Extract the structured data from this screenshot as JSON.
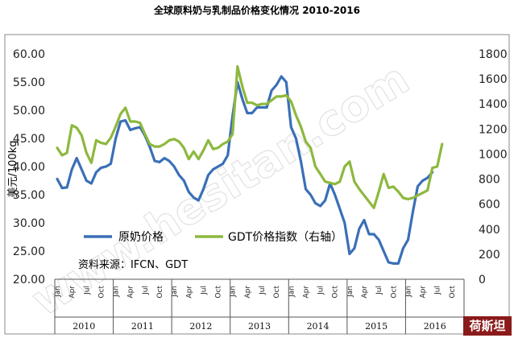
{
  "chart_data": {
    "type": "line",
    "title": "全球原料奶与乳制品价格变化情况  2010-2016",
    "ylabel": "美元/100kg",
    "y_left": {
      "lim": [
        20,
        60
      ],
      "ticks": [
        "20.00",
        "25.00",
        "30.00",
        "35.00",
        "40.00",
        "45.00",
        "50.00",
        "55.00",
        "60.00"
      ]
    },
    "y_right": {
      "lim": [
        0,
        1800
      ],
      "ticks": [
        "0",
        "200",
        "400",
        "600",
        "800",
        "1000",
        "1200",
        "1400",
        "1600",
        "1800"
      ]
    },
    "month_labels": [
      "Jan",
      "Apr",
      "Jul",
      "Oct"
    ],
    "years": [
      "2010",
      "2011",
      "2012",
      "2013",
      "2014",
      "2015",
      "2016"
    ],
    "x_start": "2010-01",
    "x_end": "2016-12",
    "annotation": "资料来源：IFCN、GDT",
    "legend_position": "inside-bottom-left",
    "series": [
      {
        "name": "原奶价格",
        "axis": "left",
        "color": "#3a6fb7",
        "values": [
          37.8,
          36.2,
          36.3,
          39.5,
          41.5,
          39.5,
          37.5,
          37.0,
          39.0,
          39.8,
          40.0,
          40.5,
          45.0,
          48.0,
          48.2,
          46.5,
          46.8,
          47.0,
          45.5,
          43.5,
          41.0,
          40.8,
          41.5,
          41.0,
          40.0,
          38.5,
          37.5,
          35.5,
          34.5,
          34.0,
          36.0,
          38.5,
          39.5,
          40.0,
          40.5,
          42.0,
          49.0,
          55.0,
          52.0,
          49.5,
          49.5,
          50.5,
          50.5,
          50.5,
          53.5,
          54.5,
          56.0,
          55.0,
          47.0,
          45.0,
          41.0,
          36.0,
          35.0,
          33.5,
          33.0,
          34.0,
          37.0,
          35.0,
          32.5,
          30.0,
          24.5,
          25.5,
          29.0,
          30.5,
          28.0,
          28.0,
          27.0,
          25.0,
          23.0,
          22.8,
          22.8,
          25.5,
          27.0,
          32.0,
          36.5,
          37.5,
          38.0,
          39.0
        ]
      },
      {
        "name": "GDT价格指数（右轴）",
        "axis": "right",
        "color": "#8db83e",
        "values": [
          1050,
          990,
          1010,
          1230,
          1210,
          1150,
          1010,
          930,
          1110,
          1090,
          1080,
          1130,
          1220,
          1320,
          1370,
          1260,
          1260,
          1250,
          1160,
          1080,
          1060,
          1060,
          1080,
          1110,
          1120,
          1100,
          1050,
          960,
          1020,
          960,
          1030,
          1110,
          1040,
          1050,
          1080,
          1100,
          1160,
          1700,
          1540,
          1410,
          1410,
          1390,
          1400,
          1400,
          1430,
          1460,
          1460,
          1470,
          1420,
          1310,
          1220,
          1100,
          1050,
          900,
          840,
          780,
          770,
          760,
          780,
          900,
          940,
          780,
          720,
          670,
          620,
          570,
          700,
          840,
          730,
          740,
          700,
          650,
          640,
          650,
          670,
          690,
          710,
          890,
          900,
          1080
        ]
      }
    ]
  },
  "watermark": "www.hesitan.com",
  "logo": "荷斯坦"
}
